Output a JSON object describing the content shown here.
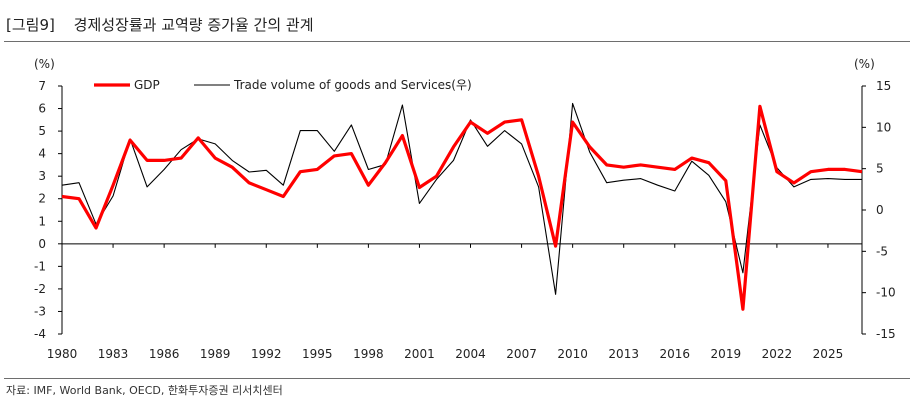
{
  "title": {
    "tag": "[그림9]",
    "text": "경제성장률과 교역량 증가율 간의 관계"
  },
  "source": "자료: IMF, World Bank, OECD, 한화투자증권 리서치센터",
  "chart_data": {
    "type": "line",
    "title": "경제성장률과 교역량 증가율 간의 관계",
    "ylabel_left": "(%)",
    "ylabel_right": "(%)",
    "ylim_left": [
      -4,
      7
    ],
    "ylim_right": [
      -15,
      15
    ],
    "yticks_left": [
      -4,
      -3,
      -2,
      -1,
      0,
      1,
      2,
      3,
      4,
      5,
      6,
      7
    ],
    "yticks_right": [
      -15,
      -10,
      -5,
      0,
      5,
      10,
      15
    ],
    "xticks": [
      1980,
      1983,
      1986,
      1989,
      1992,
      1995,
      1998,
      2001,
      2004,
      2007,
      2010,
      2013,
      2016,
      2019,
      2022,
      2025
    ],
    "legend_position": "top-left",
    "x": [
      1980,
      1981,
      1982,
      1983,
      1984,
      1985,
      1986,
      1987,
      1988,
      1989,
      1990,
      1991,
      1992,
      1993,
      1994,
      1995,
      1996,
      1997,
      1998,
      1999,
      2000,
      2001,
      2002,
      2003,
      2004,
      2005,
      2006,
      2007,
      2008,
      2009,
      2010,
      2011,
      2012,
      2013,
      2014,
      2015,
      2016,
      2017,
      2018,
      2019,
      2020,
      2021,
      2022,
      2023,
      2024,
      2025,
      2026,
      2027
    ],
    "series": [
      {
        "name": "GDP",
        "axis": "left",
        "color": "#ff0000",
        "values": [
          2.1,
          2.0,
          0.7,
          2.6,
          4.6,
          3.7,
          3.7,
          3.8,
          4.7,
          3.8,
          3.4,
          2.7,
          2.4,
          2.1,
          3.2,
          3.3,
          3.9,
          4.0,
          2.6,
          3.6,
          4.8,
          2.5,
          3.0,
          4.3,
          5.4,
          4.9,
          5.4,
          5.5,
          3.0,
          -0.1,
          5.4,
          4.3,
          3.5,
          3.4,
          3.5,
          3.4,
          3.3,
          3.8,
          3.6,
          2.8,
          -2.9,
          6.1,
          3.2,
          2.7,
          3.2,
          3.3,
          3.3,
          3.2
        ]
      },
      {
        "name": "Trade volume of goods and Services(우)",
        "axis": "right",
        "color": "#000000",
        "values": [
          3.0,
          3.3,
          -1.7,
          1.7,
          8.6,
          2.8,
          4.9,
          7.3,
          8.6,
          8.0,
          6.0,
          4.6,
          4.8,
          3.0,
          9.6,
          9.6,
          7.1,
          10.3,
          4.9,
          5.5,
          12.7,
          0.8,
          3.7,
          6.0,
          10.9,
          7.7,
          9.6,
          8.0,
          2.8,
          -10.2,
          12.9,
          7.0,
          3.3,
          3.6,
          3.8,
          3.0,
          2.3,
          5.9,
          4.2,
          1.0,
          -7.6,
          10.3,
          5.1,
          2.8,
          3.7,
          3.8,
          3.7,
          3.7
        ]
      }
    ]
  }
}
